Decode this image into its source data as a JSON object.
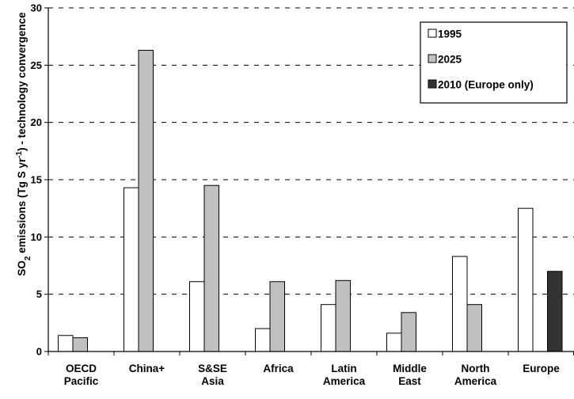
{
  "chart_data": {
    "type": "bar",
    "categories": [
      [
        "OECD",
        "Pacific"
      ],
      [
        "China+"
      ],
      [
        "S&SE",
        "Asia"
      ],
      [
        "Africa"
      ],
      [
        "Latin",
        "America"
      ],
      [
        "Middle",
        "East"
      ],
      [
        "North",
        "America"
      ],
      [
        "Europe"
      ]
    ],
    "series": [
      {
        "name": "1995",
        "color": "#ffffff",
        "values": [
          1.4,
          14.3,
          6.1,
          2.0,
          4.1,
          1.6,
          8.3,
          12.5
        ]
      },
      {
        "name": "2025",
        "color": "#c0c0c0",
        "values": [
          1.2,
          26.3,
          14.5,
          6.1,
          6.2,
          3.4,
          4.1,
          null
        ]
      },
      {
        "name": "2010 (Europe only)",
        "color": "#333333",
        "values": [
          null,
          null,
          null,
          null,
          null,
          null,
          null,
          7.0
        ]
      }
    ],
    "ylabel": {
      "prefix": "SO",
      "sub": "2",
      "mid": " emissions (Tg S yr",
      "sup": "-1",
      "suffix": ") - technology convergence"
    },
    "ylim": [
      0,
      30
    ],
    "yticks": [
      0,
      5,
      10,
      15,
      20,
      25,
      30
    ],
    "grid": true,
    "legend_position": "top-right"
  }
}
